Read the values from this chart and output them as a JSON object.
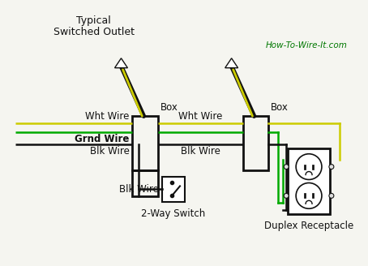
{
  "title_line1": "Typical",
  "title_line2": "Switched Outlet",
  "watermark": "How-To-Wire-It.com",
  "bg_color": "#f5f5f0",
  "wire_colors": {
    "yellow": "#cccc00",
    "green": "#00aa00",
    "black": "#111111"
  },
  "labels": {
    "wht_wire_left": "Wht Wire",
    "grnd_wire": "Grnd Wire",
    "blk_wire_left": "Blk Wire",
    "wht_wire_right": "Wht Wire",
    "blk_wire_right": "Blk Wire",
    "blk_wire_switch": "Blk Wire",
    "switch_label": "2-Way Switch",
    "receptacle_label": "Duplex Receptacle",
    "box_left": "Box",
    "box_right": "Box"
  }
}
